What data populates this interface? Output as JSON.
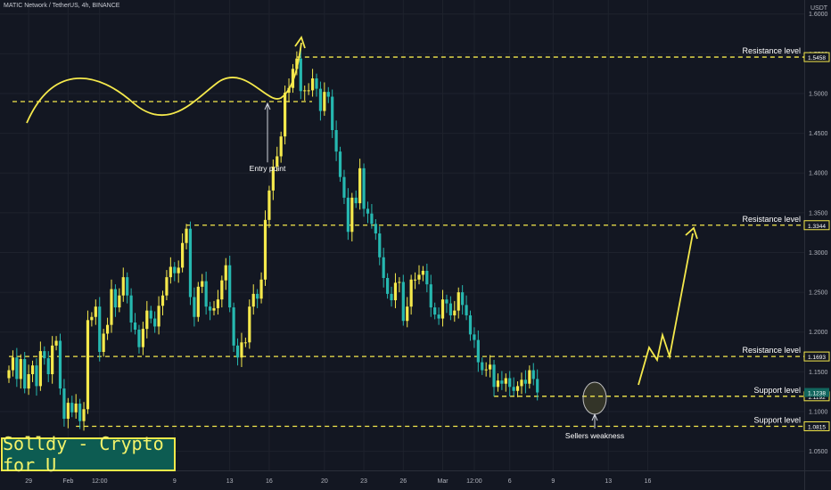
{
  "header": {
    "symbol": "MATIC Network / TetherUS, 4h, BINANCE",
    "currency": "USDT"
  },
  "brand": {
    "text": "Solldy - Crypto for U"
  },
  "colors": {
    "background": "#131722",
    "grid": "#1e222d",
    "bull": "#f5e94c",
    "bear": "#26b8b0",
    "annotation": "#f5e94c",
    "current_price_bg": "#12665e"
  },
  "chart_data": {
    "type": "candlestick",
    "y_scale": "linear",
    "ylim": [
      1.026,
      1.6176
    ],
    "y_ticks": [
      1.05,
      1.1,
      1.15,
      1.2,
      1.25,
      1.3,
      1.35,
      1.4,
      1.45,
      1.5,
      1.55,
      1.6
    ],
    "y_tick_labels": [
      "1.0500",
      "1.1000",
      "1.1500",
      "1.2000",
      "1.2500",
      "1.3000",
      "1.3500",
      "1.4000",
      "1.4500",
      "1.5000",
      "1.5500",
      "1.6000"
    ],
    "x_tick_labels": [
      "29",
      "Feb",
      "12:00",
      "9",
      "13",
      "16",
      "20",
      "23",
      "26",
      "Mar",
      "12:00",
      "6",
      "9",
      "13",
      "16"
    ],
    "x_tick_index": [
      5,
      15,
      23,
      42,
      56,
      66,
      80,
      90,
      100,
      110,
      118,
      127,
      138,
      152,
      162
    ],
    "grid": true,
    "current_price": "1.1238",
    "levels": [
      {
        "label": "Resistance level",
        "value": 1.5458,
        "value_label": "1.5458",
        "from_index": 73
      },
      {
        "label": "Resistance level",
        "value": 1.3344,
        "value_label": "1.3344",
        "from_index": 45
      },
      {
        "label": "Resistance level",
        "value": 1.1693,
        "value_label": "1.1693",
        "from_index": 0
      },
      {
        "label": "Support level",
        "value": 1.1192,
        "value_label": "1.1192",
        "from_index": 123
      },
      {
        "label": "Support level",
        "value": 1.0815,
        "value_label": "1.0815",
        "from_index": 17
      }
    ],
    "annotations": [
      {
        "text": "Entry point",
        "index": 55,
        "value": 1.4
      },
      {
        "text": "Sellers weakness",
        "index": 124,
        "value": 1.0698
      }
    ],
    "closes": [
      1.152,
      1.168,
      1.141,
      1.166,
      1.129,
      1.147,
      1.158,
      1.132,
      1.176,
      1.167,
      1.147,
      1.183,
      1.189,
      1.129,
      1.091,
      1.111,
      1.099,
      1.11,
      1.088,
      1.103,
      1.215,
      1.219,
      1.232,
      1.175,
      1.198,
      1.209,
      1.254,
      1.231,
      1.246,
      1.269,
      1.246,
      1.212,
      1.203,
      1.181,
      1.204,
      1.227,
      1.217,
      1.207,
      1.233,
      1.246,
      1.269,
      1.282,
      1.274,
      1.281,
      1.312,
      1.33,
      1.244,
      1.219,
      1.257,
      1.264,
      1.232,
      1.227,
      1.23,
      1.241,
      1.265,
      1.284,
      1.231,
      1.183,
      1.168,
      1.187,
      1.187,
      1.232,
      1.248,
      1.242,
      1.266,
      1.341,
      1.378,
      1.408,
      1.421,
      1.446,
      1.501,
      1.507,
      1.531,
      1.544,
      1.503,
      1.504,
      1.504,
      1.519,
      1.506,
      1.478,
      1.502,
      1.496,
      1.454,
      1.427,
      1.395,
      1.369,
      1.326,
      1.369,
      1.362,
      1.406,
      1.355,
      1.349,
      1.336,
      1.324,
      1.294,
      1.268,
      1.248,
      1.24,
      1.262,
      1.263,
      1.214,
      1.232,
      1.266,
      1.266,
      1.272,
      1.277,
      1.26,
      1.231,
      1.222,
      1.217,
      1.241,
      1.236,
      1.221,
      1.227,
      1.25,
      1.234,
      1.221,
      1.197,
      1.19,
      1.162,
      1.152,
      1.153,
      1.159,
      1.131,
      1.139,
      1.135,
      1.142,
      1.131,
      1.126,
      1.132,
      1.14,
      1.135,
      1.152,
      1.141,
      1.124
    ]
  }
}
